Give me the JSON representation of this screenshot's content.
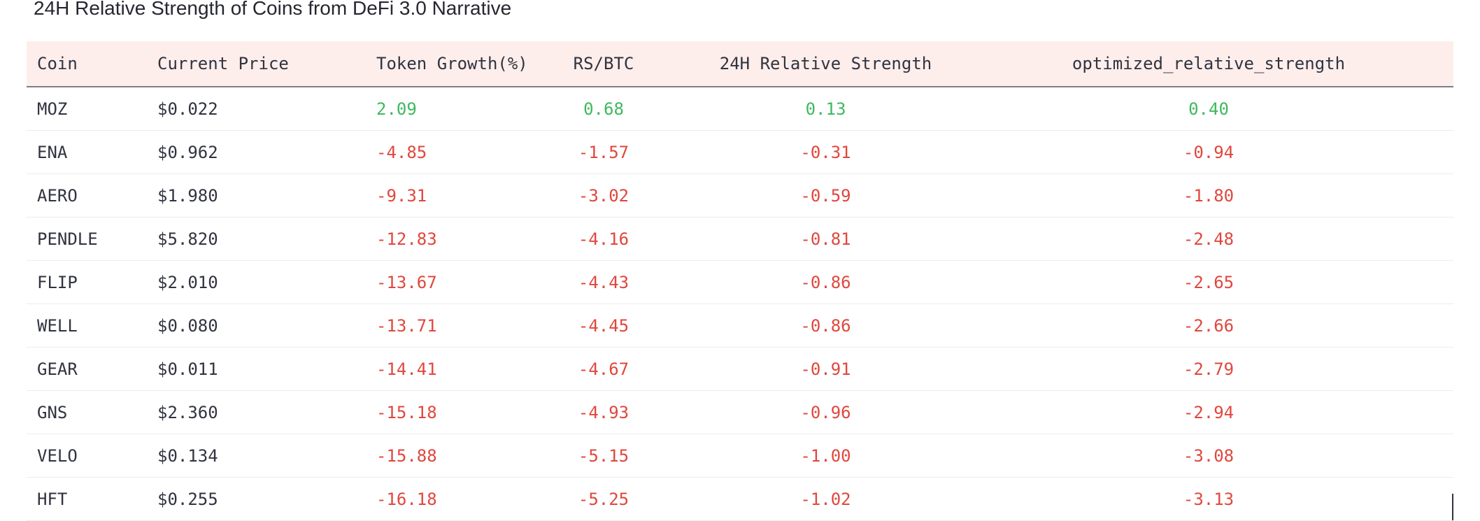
{
  "title": "24H Relative Strength of Coins from DeFi 3.0 Narrative",
  "colors": {
    "header_bg": "#fdeeec",
    "positive": "#3fb85f",
    "negative": "#e0473d",
    "text": "#31333f"
  },
  "table": {
    "columns": [
      "Coin",
      "Current Price",
      "Token Growth(%)",
      "RS/BTC",
      "24H Relative Strength",
      "optimized_relative_strength"
    ],
    "rows": [
      [
        "MOZ",
        "$0.022",
        "2.09",
        "0.68",
        "0.13",
        "0.40"
      ],
      [
        "ENA",
        "$0.962",
        "-4.85",
        "-1.57",
        "-0.31",
        "-0.94"
      ],
      [
        "AERO",
        "$1.980",
        "-9.31",
        "-3.02",
        "-0.59",
        "-1.80"
      ],
      [
        "PENDLE",
        "$5.820",
        "-12.83",
        "-4.16",
        "-0.81",
        "-2.48"
      ],
      [
        "FLIP",
        "$2.010",
        "-13.67",
        "-4.43",
        "-0.86",
        "-2.65"
      ],
      [
        "WELL",
        "$0.080",
        "-13.71",
        "-4.45",
        "-0.86",
        "-2.66"
      ],
      [
        "GEAR",
        "$0.011",
        "-14.41",
        "-4.67",
        "-0.91",
        "-2.79"
      ],
      [
        "GNS",
        "$2.360",
        "-15.18",
        "-4.93",
        "-0.96",
        "-2.94"
      ],
      [
        "VELO",
        "$0.134",
        "-15.88",
        "-5.15",
        "-1.00",
        "-3.08"
      ],
      [
        "HFT",
        "$0.255",
        "-16.18",
        "-5.25",
        "-1.02",
        "-3.13"
      ]
    ]
  }
}
